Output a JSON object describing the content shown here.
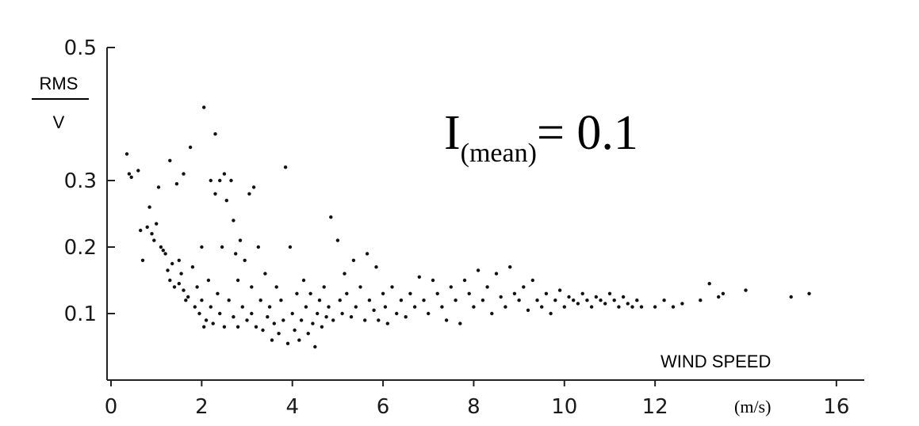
{
  "chart_data": {
    "type": "scatter",
    "title": "",
    "ylabel_numerator": "RMS",
    "ylabel_denominator": "V",
    "xlabel": "WIND SPEED",
    "xunit": "(m/s)",
    "annotation": {
      "main": "I",
      "sub": "(mean)",
      "rest": "= 0.1"
    },
    "xlim": [
      0,
      16.3
    ],
    "ylim": [
      0,
      0.5
    ],
    "x_ticks": [
      0,
      2,
      4,
      6,
      8,
      10,
      12,
      16
    ],
    "x_tick_labels": [
      "0",
      "2",
      "4",
      "6",
      "8",
      "10",
      "12",
      "16"
    ],
    "y_ticks": [
      0.1,
      0.2,
      0.3,
      0.5
    ],
    "y_tick_labels": [
      "0.1",
      "0.2",
      "0.3",
      "0.5"
    ],
    "grid": false,
    "colors": {
      "points": "#111111",
      "axis": "#222222"
    },
    "series": [
      {
        "points": [
          [
            0.35,
            0.34
          ],
          [
            0.4,
            0.31
          ],
          [
            0.45,
            0.305
          ],
          [
            0.6,
            0.315
          ],
          [
            0.65,
            0.225
          ],
          [
            0.7,
            0.18
          ],
          [
            0.8,
            0.23
          ],
          [
            0.85,
            0.26
          ],
          [
            0.9,
            0.22
          ],
          [
            0.95,
            0.21
          ],
          [
            1.0,
            0.235
          ],
          [
            1.05,
            0.29
          ],
          [
            1.1,
            0.2
          ],
          [
            1.15,
            0.195
          ],
          [
            1.2,
            0.19
          ],
          [
            1.25,
            0.165
          ],
          [
            1.3,
            0.15
          ],
          [
            1.3,
            0.33
          ],
          [
            1.35,
            0.175
          ],
          [
            1.4,
            0.14
          ],
          [
            1.45,
            0.295
          ],
          [
            1.5,
            0.18
          ],
          [
            1.5,
            0.145
          ],
          [
            1.55,
            0.16
          ],
          [
            1.6,
            0.135
          ],
          [
            1.6,
            0.31
          ],
          [
            1.65,
            0.12
          ],
          [
            1.7,
            0.125
          ],
          [
            1.75,
            0.35
          ],
          [
            1.8,
            0.17
          ],
          [
            1.85,
            0.11
          ],
          [
            1.9,
            0.14
          ],
          [
            1.95,
            0.1
          ],
          [
            2.0,
            0.2
          ],
          [
            2.0,
            0.12
          ],
          [
            2.05,
            0.41
          ],
          [
            2.05,
            0.08
          ],
          [
            2.1,
            0.09
          ],
          [
            2.15,
            0.15
          ],
          [
            2.2,
            0.3
          ],
          [
            2.2,
            0.11
          ],
          [
            2.25,
            0.085
          ],
          [
            2.3,
            0.37
          ],
          [
            2.3,
            0.28
          ],
          [
            2.35,
            0.13
          ],
          [
            2.4,
            0.3
          ],
          [
            2.4,
            0.1
          ],
          [
            2.45,
            0.2
          ],
          [
            2.5,
            0.31
          ],
          [
            2.5,
            0.08
          ],
          [
            2.55,
            0.27
          ],
          [
            2.6,
            0.12
          ],
          [
            2.65,
            0.3
          ],
          [
            2.7,
            0.24
          ],
          [
            2.7,
            0.095
          ],
          [
            2.75,
            0.19
          ],
          [
            2.8,
            0.15
          ],
          [
            2.8,
            0.08
          ],
          [
            2.85,
            0.21
          ],
          [
            2.9,
            0.11
          ],
          [
            2.95,
            0.18
          ],
          [
            3.0,
            0.09
          ],
          [
            3.05,
            0.28
          ],
          [
            3.1,
            0.14
          ],
          [
            3.1,
            0.1
          ],
          [
            3.15,
            0.29
          ],
          [
            3.2,
            0.08
          ],
          [
            3.25,
            0.2
          ],
          [
            3.3,
            0.12
          ],
          [
            3.35,
            0.075
          ],
          [
            3.4,
            0.16
          ],
          [
            3.45,
            0.095
          ],
          [
            3.5,
            0.11
          ],
          [
            3.55,
            0.06
          ],
          [
            3.6,
            0.085
          ],
          [
            3.65,
            0.14
          ],
          [
            3.7,
            0.07
          ],
          [
            3.75,
            0.12
          ],
          [
            3.8,
            0.09
          ],
          [
            3.85,
            0.32
          ],
          [
            3.9,
            0.055
          ],
          [
            3.95,
            0.2
          ],
          [
            4.0,
            0.1
          ],
          [
            4.05,
            0.075
          ],
          [
            4.1,
            0.13
          ],
          [
            4.15,
            0.06
          ],
          [
            4.2,
            0.09
          ],
          [
            4.25,
            0.15
          ],
          [
            4.3,
            0.11
          ],
          [
            4.35,
            0.07
          ],
          [
            4.4,
            0.13
          ],
          [
            4.45,
            0.085
          ],
          [
            4.5,
            0.05
          ],
          [
            4.55,
            0.1
          ],
          [
            4.6,
            0.12
          ],
          [
            4.65,
            0.08
          ],
          [
            4.7,
            0.14
          ],
          [
            4.75,
            0.095
          ],
          [
            4.8,
            0.11
          ],
          [
            4.85,
            0.245
          ],
          [
            4.9,
            0.09
          ],
          [
            5.0,
            0.21
          ],
          [
            5.05,
            0.12
          ],
          [
            5.1,
            0.1
          ],
          [
            5.15,
            0.16
          ],
          [
            5.2,
            0.13
          ],
          [
            5.3,
            0.095
          ],
          [
            5.35,
            0.18
          ],
          [
            5.4,
            0.11
          ],
          [
            5.5,
            0.14
          ],
          [
            5.6,
            0.09
          ],
          [
            5.65,
            0.19
          ],
          [
            5.7,
            0.12
          ],
          [
            5.8,
            0.105
          ],
          [
            5.85,
            0.17
          ],
          [
            5.9,
            0.09
          ],
          [
            6.0,
            0.13
          ],
          [
            6.05,
            0.11
          ],
          [
            6.1,
            0.085
          ],
          [
            6.2,
            0.14
          ],
          [
            6.3,
            0.1
          ],
          [
            6.4,
            0.12
          ],
          [
            6.5,
            0.095
          ],
          [
            6.6,
            0.13
          ],
          [
            6.7,
            0.11
          ],
          [
            6.8,
            0.155
          ],
          [
            6.9,
            0.12
          ],
          [
            7.0,
            0.1
          ],
          [
            7.1,
            0.15
          ],
          [
            7.2,
            0.13
          ],
          [
            7.3,
            0.11
          ],
          [
            7.4,
            0.09
          ],
          [
            7.5,
            0.14
          ],
          [
            7.6,
            0.12
          ],
          [
            7.7,
            0.085
          ],
          [
            7.8,
            0.15
          ],
          [
            7.9,
            0.13
          ],
          [
            8.0,
            0.11
          ],
          [
            8.1,
            0.165
          ],
          [
            8.2,
            0.12
          ],
          [
            8.3,
            0.14
          ],
          [
            8.4,
            0.1
          ],
          [
            8.5,
            0.16
          ],
          [
            8.6,
            0.125
          ],
          [
            8.7,
            0.11
          ],
          [
            8.8,
            0.17
          ],
          [
            8.9,
            0.13
          ],
          [
            9.0,
            0.12
          ],
          [
            9.1,
            0.14
          ],
          [
            9.2,
            0.105
          ],
          [
            9.3,
            0.15
          ],
          [
            9.4,
            0.12
          ],
          [
            9.5,
            0.11
          ],
          [
            9.6,
            0.13
          ],
          [
            9.7,
            0.1
          ],
          [
            9.8,
            0.12
          ],
          [
            9.9,
            0.135
          ],
          [
            10.0,
            0.11
          ],
          [
            10.1,
            0.125
          ],
          [
            10.2,
            0.12
          ],
          [
            10.3,
            0.115
          ],
          [
            10.4,
            0.13
          ],
          [
            10.5,
            0.12
          ],
          [
            10.6,
            0.11
          ],
          [
            10.7,
            0.125
          ],
          [
            10.8,
            0.12
          ],
          [
            10.9,
            0.115
          ],
          [
            11.0,
            0.13
          ],
          [
            11.1,
            0.12
          ],
          [
            11.2,
            0.11
          ],
          [
            11.3,
            0.125
          ],
          [
            11.4,
            0.115
          ],
          [
            11.5,
            0.11
          ],
          [
            11.6,
            0.12
          ],
          [
            11.7,
            0.11
          ],
          [
            12.0,
            0.11
          ],
          [
            12.2,
            0.12
          ],
          [
            12.4,
            0.11
          ],
          [
            12.6,
            0.115
          ],
          [
            13.0,
            0.12
          ],
          [
            13.2,
            0.145
          ],
          [
            13.4,
            0.125
          ],
          [
            13.5,
            0.13
          ],
          [
            14.0,
            0.135
          ],
          [
            15.0,
            0.125
          ],
          [
            15.4,
            0.13
          ]
        ]
      }
    ]
  }
}
